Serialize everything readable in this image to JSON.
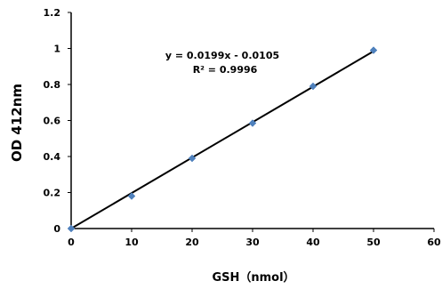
{
  "chart_data": {
    "type": "scatter",
    "title": "",
    "xlabel": "GSH（nmol）",
    "ylabel": "OD 412nm",
    "xlim": [
      0,
      60
    ],
    "ylim": [
      0,
      1.2
    ],
    "x_ticks": [
      "0",
      "10",
      "20",
      "30",
      "40",
      "50",
      "60"
    ],
    "y_ticks": [
      "0",
      "0.2",
      "0.4",
      "0.6",
      "0.8",
      "1",
      "1.2"
    ],
    "grid": false,
    "legend": "none",
    "series": [
      {
        "x": [
          0,
          10,
          20,
          30,
          40,
          50
        ],
        "y": [
          0,
          0.18,
          0.39,
          0.585,
          0.79,
          0.99
        ],
        "marker": "diamond",
        "color": "#4f81bd"
      }
    ],
    "trendline": {
      "type": "linear",
      "x_range": [
        0,
        50
      ],
      "slope": 0.0199,
      "intercept": -0.0105,
      "color": "#000000",
      "equation_text": "y = 0.0199x - 0.0105",
      "r2_text": "R² = 0.9996"
    }
  }
}
